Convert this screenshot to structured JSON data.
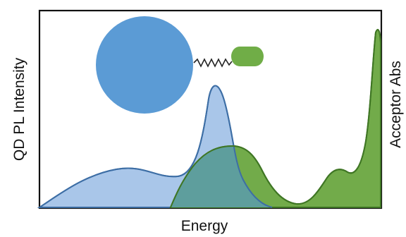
{
  "axes": {
    "x_label": "Energy",
    "y_left_label": "QD PL Intensity",
    "y_right_label": "Acceptor Abs"
  },
  "colors": {
    "qd_fill": "#a9c6e9",
    "qd_stroke": "#3d6ea5",
    "acceptor_fill": "#72ab4a",
    "acceptor_stroke": "#3f7624",
    "overlap_fill": "#5e9e9d",
    "qd_circle": "#5b9bd5",
    "acceptor_capsule": "#70ad47",
    "linker": "#222222",
    "frame": "#111111"
  }
}
